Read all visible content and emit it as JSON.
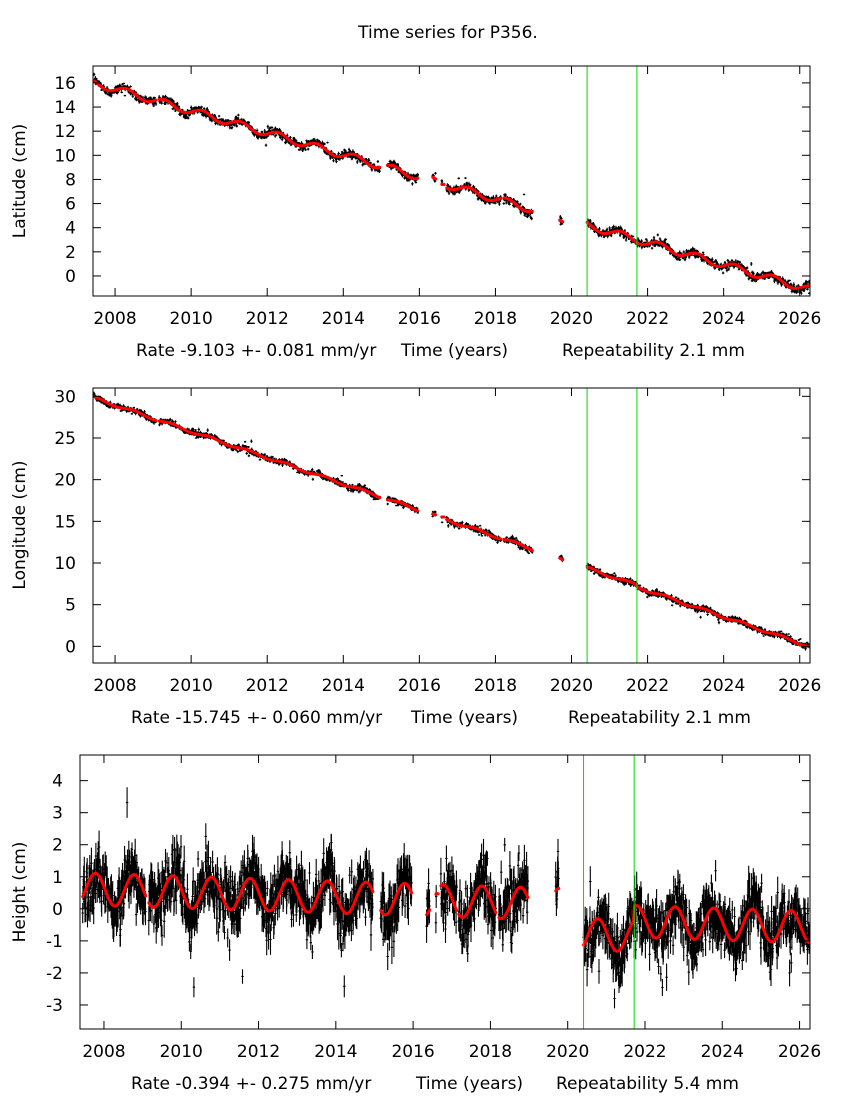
{
  "chart_data": {
    "type": "scatter",
    "title": "Time series for P356.",
    "x_unit": "years",
    "breaks": [
      2020.41,
      2021.72
    ],
    "panels": [
      {
        "name": "latitude",
        "ylabel": "Latitude (cm)",
        "xlabel_rate": "Rate -9.103 +- 0.081 mm/yr",
        "xlabel_mid": "Time (years)",
        "xlabel_rep": "Repeatability 2.1 mm",
        "xlim": [
          2007.42,
          2026.27
        ],
        "ylim": [
          -1.66,
          17.4
        ],
        "yticks": [
          0,
          2,
          4,
          6,
          8,
          10,
          12,
          14,
          16
        ],
        "ytick_labels": [
          "0",
          "2",
          "4",
          "6",
          "8",
          "10",
          "12",
          "14",
          "16"
        ],
        "xticks": [
          2008,
          2010,
          2012,
          2014,
          2016,
          2018,
          2020,
          2022,
          2024,
          2026
        ],
        "xtick_labels": [
          "2008",
          "2010",
          "2012",
          "2014",
          "2016",
          "2018",
          "2020",
          "2022",
          "2024",
          "2026"
        ],
        "model": {
          "t0": 2007.45,
          "value_at_t0": 16.0,
          "rate_cm_per_yr": -0.9103,
          "seasonal_amp": 0.3,
          "seasonal_peak_frac": 0.3,
          "break_offsets": [
            0.0,
            0.0
          ]
        },
        "noise_cm": 0.21,
        "errbar_cm": 0.12
      },
      {
        "name": "longitude",
        "ylabel": "Longitude (cm)",
        "xlabel_rate": "Rate -15.745 +- 0.060 mm/yr",
        "xlabel_mid": "Time (years)",
        "xlabel_rep": "Repeatability 2.1 mm",
        "xlim": [
          2007.42,
          2026.27
        ],
        "ylim": [
          -2.0,
          31.0
        ],
        "yticks": [
          0,
          5,
          10,
          15,
          20,
          25,
          30
        ],
        "ytick_labels": [
          "0",
          "5",
          "10",
          "15",
          "20",
          "25",
          "30"
        ],
        "xticks": [
          2008,
          2010,
          2012,
          2014,
          2016,
          2018,
          2020,
          2022,
          2024,
          2026
        ],
        "xtick_labels": [
          "2008",
          "2010",
          "2012",
          "2014",
          "2016",
          "2018",
          "2020",
          "2022",
          "2024",
          "2026"
        ],
        "model": {
          "t0": 2007.45,
          "value_at_t0": 29.8,
          "rate_cm_per_yr": -1.5745,
          "seasonal_amp": 0.15,
          "seasonal_peak_frac": 0.5,
          "break_offsets": [
            0.0,
            -0.2
          ]
        },
        "noise_cm": 0.21,
        "errbar_cm": 0.15
      },
      {
        "name": "height",
        "ylabel": "Height (cm)",
        "xlabel_rate": "Rate -0.394 +- 0.275 mm/yr",
        "xlabel_mid": "Time (years)",
        "xlabel_rep": "Repeatability 5.4 mm",
        "xlim": [
          2007.38,
          2026.27
        ],
        "ylim": [
          -3.75,
          4.8
        ],
        "yticks": [
          -3,
          -2,
          -1,
          0,
          1,
          2,
          3,
          4
        ],
        "ytick_labels": [
          "-3",
          "-2",
          "-1",
          "0",
          "1",
          "2",
          "3",
          "4"
        ],
        "xticks": [
          2008,
          2010,
          2012,
          2014,
          2016,
          2018,
          2020,
          2022,
          2024,
          2026
        ],
        "xtick_labels": [
          "2008",
          "2010",
          "2012",
          "2014",
          "2016",
          "2018",
          "2020",
          "2022",
          "2024",
          "2026"
        ],
        "model": {
          "t0": 2007.45,
          "value_at_t0": 0.62,
          "rate_cm_per_yr": -0.0394,
          "seasonal_amp": 0.5,
          "seasonal_peak_frac": 0.78,
          "break_offsets": [
            -0.9,
            0.45
          ]
        },
        "noise_cm": 0.54,
        "errbar_cm": 0.35
      }
    ],
    "segments": [
      [
        2007.45,
        2009.08
      ],
      [
        2009.16,
        2014.96
      ],
      [
        2015.16,
        2015.96
      ],
      [
        2016.35,
        2016.43
      ],
      [
        2016.59,
        2016.6
      ],
      [
        2016.72,
        2017.13
      ],
      [
        2017.18,
        2018.14
      ],
      [
        2018.22,
        2018.97
      ],
      [
        2019.69,
        2019.77
      ],
      [
        2020.41,
        2026.27
      ]
    ],
    "fit_color": "#ff0000",
    "data_color": "#000000",
    "break_color": "#00dd00"
  }
}
